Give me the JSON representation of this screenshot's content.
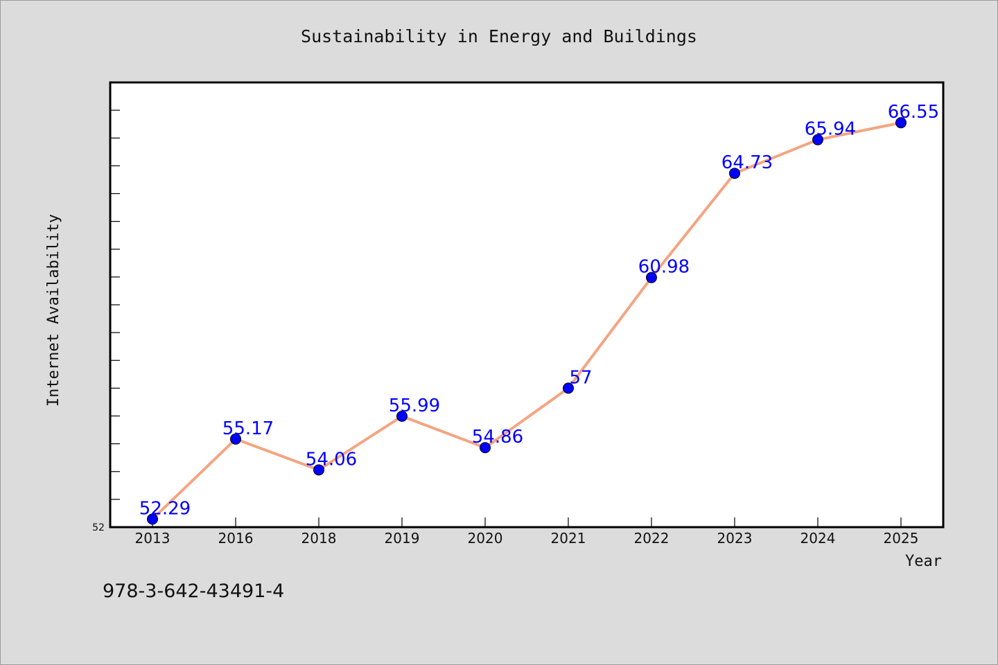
{
  "chart_data": {
    "type": "line",
    "title": "Sustainability in Energy and Buildings",
    "xlabel": "Year",
    "ylabel": "Internet Availability",
    "categories": [
      "2013",
      "2016",
      "2018",
      "2019",
      "2020",
      "2021",
      "2022",
      "2023",
      "2024",
      "2025"
    ],
    "values": [
      52.29,
      55.17,
      54.06,
      55.99,
      54.86,
      57,
      60.98,
      64.73,
      65.94,
      66.55
    ],
    "data_labels": [
      "52.29",
      "55.17",
      "54.06",
      "55.99",
      "54.86",
      "57",
      "60.98",
      "64.73",
      "65.94",
      "66.55"
    ],
    "ylim": [
      52,
      68
    ],
    "y_min_label": "52",
    "grid": false,
    "line_color": "#f4a582",
    "marker_color": "#0000ff",
    "label_color": "#0000ff"
  },
  "footer": {
    "isbn": "978-3-642-43491-4"
  }
}
